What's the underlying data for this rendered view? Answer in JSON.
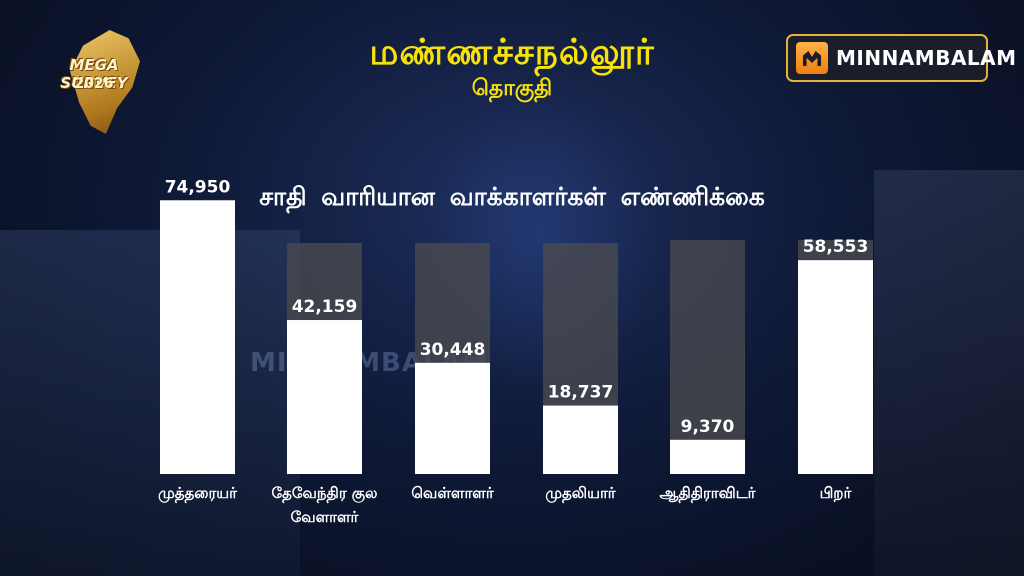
{
  "header": {
    "title": "மண்ணச்சநல்லூர்",
    "subtitle": "தொகுதி"
  },
  "logo_left": {
    "text": "MEGA SURVEY",
    "year": "2026"
  },
  "logo_right": {
    "text": "MINNAMBALAM"
  },
  "watermark": "MINNAMBALAM",
  "colors": {
    "title": "#f6e20a",
    "bar_fill": "#ffffff",
    "bar_track": "#4a4a4f"
  },
  "chart_data": {
    "type": "bar",
    "title": "சாதி வாரியான வாக்காளர்கள் எண்ணிக்கை",
    "categories": [
      "முத்தரையர்",
      "தேவேந்திர குல வேளாளர்",
      "வெள்ளாளர்",
      "முதலியார்",
      "ஆதிதிராவிடர்",
      "பிறர்"
    ],
    "category_lines": [
      [
        "முத்தரையர்"
      ],
      [
        "தேவேந்திர குல",
        "வேளாளர்"
      ],
      [
        "வெள்ளாளர்"
      ],
      [
        "முதலியார்"
      ],
      [
        "ஆதிதிராவிடர்"
      ],
      [
        "பிறர்"
      ]
    ],
    "values": [
      74950,
      42159,
      30448,
      18737,
      9370,
      58553
    ],
    "value_labels": [
      "74,950",
      "42,159",
      "30,448",
      "18,737",
      "9,370",
      "58,553"
    ],
    "ylim": [
      0,
      92000
    ],
    "grid": false,
    "legend": "none"
  }
}
